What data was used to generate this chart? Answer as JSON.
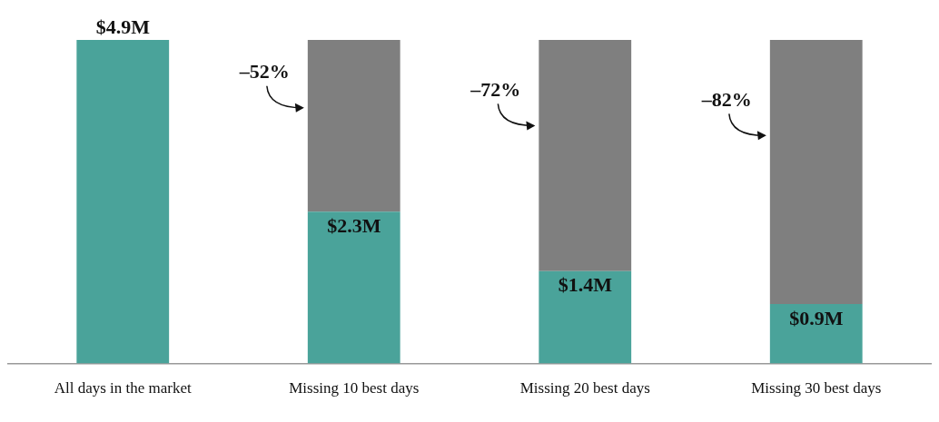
{
  "chart_data": {
    "type": "bar",
    "stacked": true,
    "categories": [
      "All days in the market",
      "Missing 10 best days",
      "Missing 20 best days",
      "Missing 30 best days"
    ],
    "series": [
      {
        "color": "#4aa39a",
        "values": [
          4.9,
          2.3,
          1.4,
          0.9
        ],
        "value_labels": [
          "$4.9M",
          "$2.3M",
          "$1.4M",
          "$0.9M"
        ]
      },
      {
        "color": "#7f7f7f",
        "values": [
          0,
          2.6,
          3.5,
          4.0
        ]
      }
    ],
    "annotations": [
      "–52%",
      "–72%",
      "–82%"
    ],
    "grid": false,
    "legend": false
  }
}
